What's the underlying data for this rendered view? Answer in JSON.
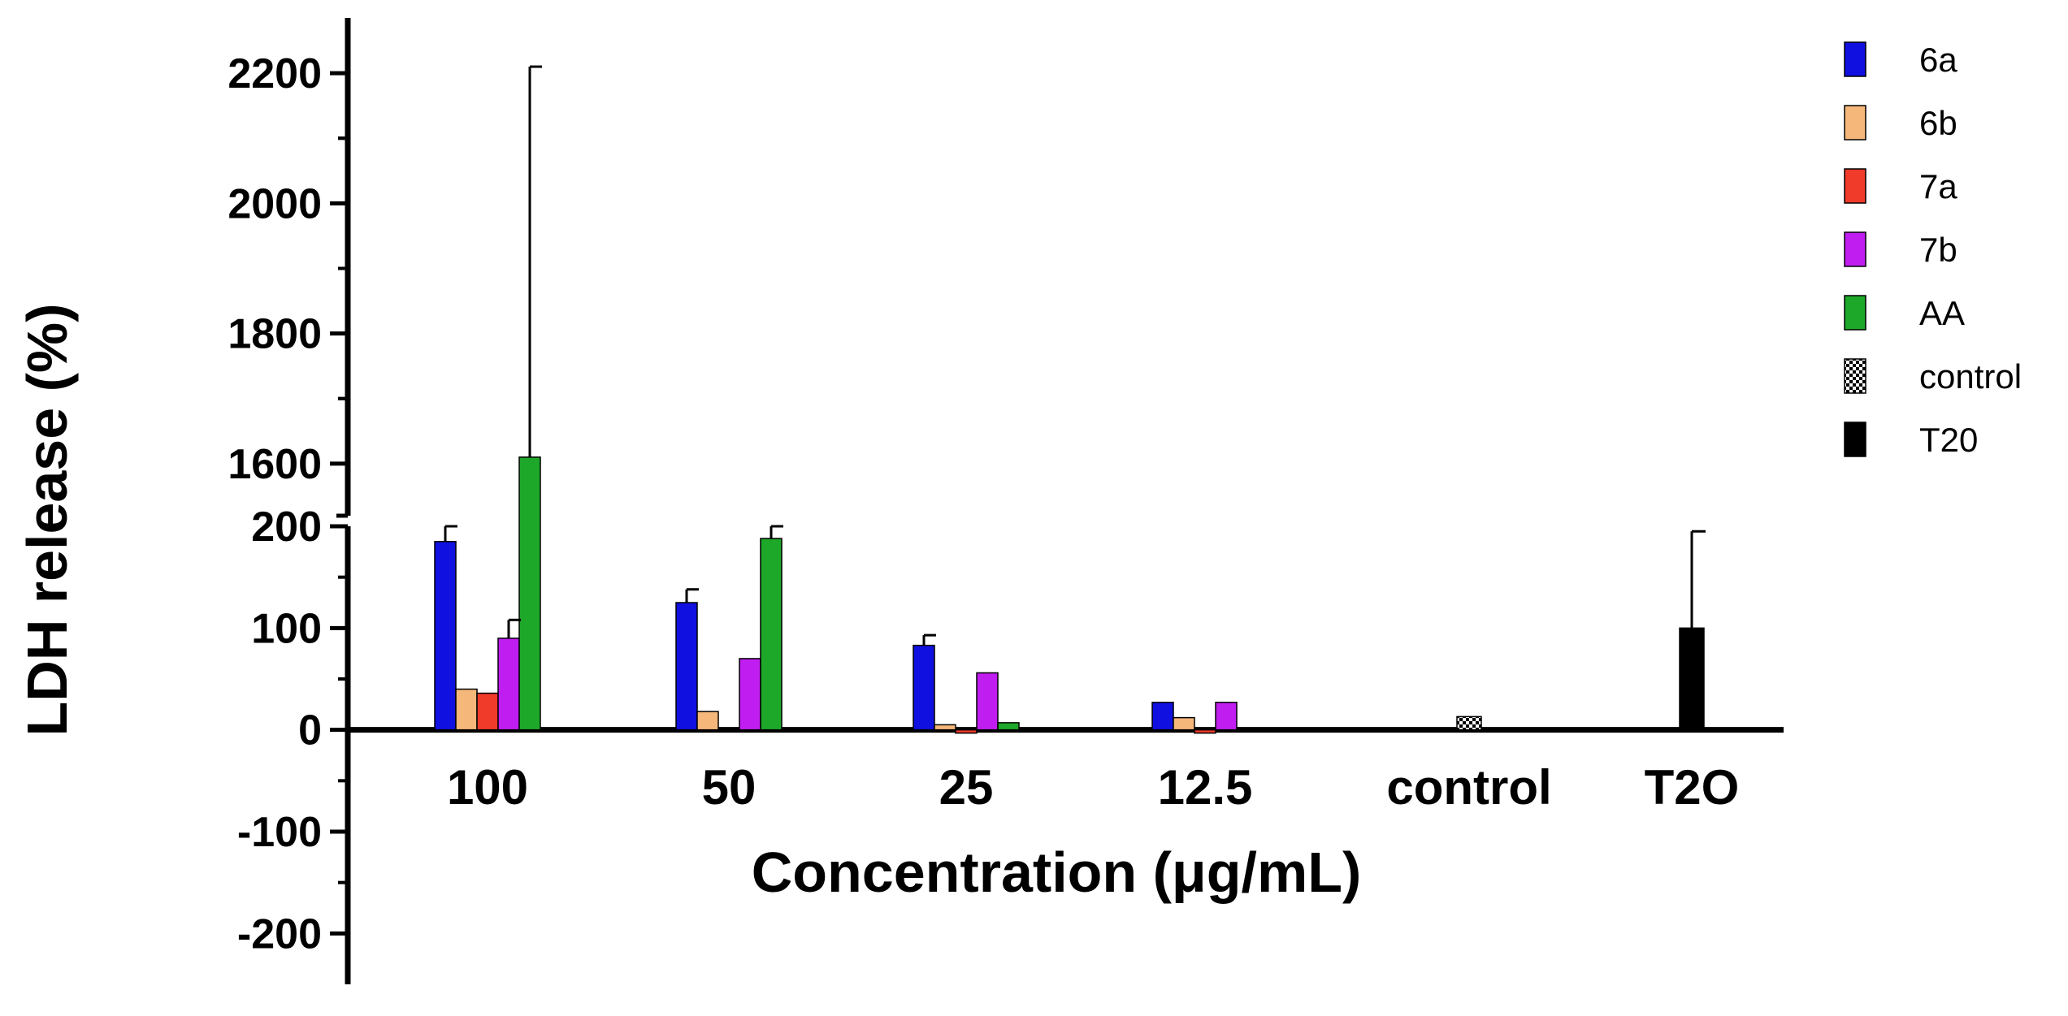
{
  "chart_data": {
    "type": "bar",
    "title": "",
    "xlabel": "Concentration (μg/mL)",
    "ylabel": "LDH release (%)",
    "y_axis_break": [
      200,
      1520
    ],
    "ylim_lower": [
      -250,
      200
    ],
    "ylim_upper": [
      1520,
      2260
    ],
    "y_ticks_lower": [
      -200,
      -100,
      0,
      100,
      200
    ],
    "y_ticks_upper": [
      1600,
      1800,
      2000,
      2200
    ],
    "y_tick_labels_lower": [
      "-200",
      "-100",
      "0",
      "100",
      "200"
    ],
    "y_tick_labels_upper": [
      "1600",
      "1800",
      "2000",
      "2200"
    ],
    "categories": [
      "100",
      "50",
      "25",
      "12.5",
      "control",
      "T2O"
    ],
    "series": [
      {
        "name": "6a",
        "color": "#1010e0",
        "values": [
          185,
          125,
          83,
          27,
          null,
          null
        ],
        "errors": [
          18,
          13,
          10,
          0,
          null,
          null
        ]
      },
      {
        "name": "6b",
        "color": "#f5b77a",
        "values": [
          40,
          18,
          5,
          12,
          null,
          null
        ],
        "errors": [
          0,
          0,
          0,
          0,
          null,
          null
        ]
      },
      {
        "name": "7a",
        "color": "#f03a2a",
        "values": [
          36,
          null,
          -3,
          -3,
          null,
          null
        ],
        "errors": [
          0,
          null,
          0,
          0,
          null,
          null
        ]
      },
      {
        "name": "7b",
        "color": "#c01ef0",
        "values": [
          90,
          70,
          56,
          27,
          null,
          null
        ],
        "errors": [
          18,
          0,
          0,
          0,
          null,
          null
        ]
      },
      {
        "name": "AA",
        "color": "#1ea82a",
        "values": [
          1610,
          188,
          7,
          null,
          null,
          null
        ],
        "errors": [
          600,
          12,
          0,
          null,
          null,
          null
        ]
      },
      {
        "name": "control",
        "color": "#9a9a9a",
        "pattern": "checker",
        "values": [
          null,
          null,
          null,
          null,
          13,
          null
        ],
        "errors": [
          null,
          null,
          null,
          null,
          0,
          null
        ]
      },
      {
        "name": "T20",
        "color": "#000000",
        "values": [
          null,
          null,
          null,
          null,
          null,
          100
        ],
        "errors": [
          null,
          null,
          null,
          null,
          null,
          95
        ]
      }
    ],
    "legend_position": "top-right",
    "grid": false
  }
}
